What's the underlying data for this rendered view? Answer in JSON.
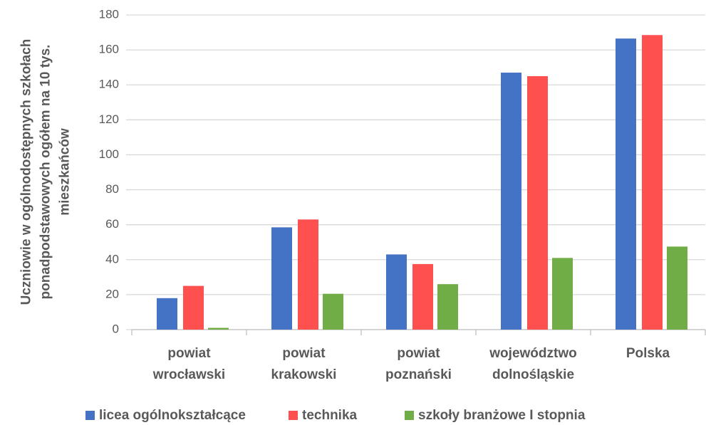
{
  "chart_data": {
    "type": "bar",
    "ylabel": "Uczniowie w ogólnodostępnych szkołach ponadpodstawowych ogółem na 10 tys. mieszkańców",
    "categories": [
      "powiat wrocławski",
      "powiat krakowski",
      "powiat poznański",
      "województwo dolnośląskie",
      "Polska"
    ],
    "series": [
      {
        "name": "licea ogólnokształcące",
        "color": "#4472c4",
        "values": [
          18,
          58.5,
          43,
          147,
          166.5
        ]
      },
      {
        "name": "technika",
        "color": "#ff5050",
        "values": [
          25,
          63,
          37.5,
          145,
          168.5
        ]
      },
      {
        "name": "szkoły branżowe I stopnia",
        "color": "#70ad47",
        "values": [
          1,
          20.5,
          26,
          41,
          47.5
        ]
      }
    ],
    "ylim": [
      0,
      180
    ],
    "yticks": [
      0,
      20,
      40,
      60,
      80,
      100,
      120,
      140,
      160,
      180
    ],
    "grid": true,
    "legend": "bottom"
  }
}
